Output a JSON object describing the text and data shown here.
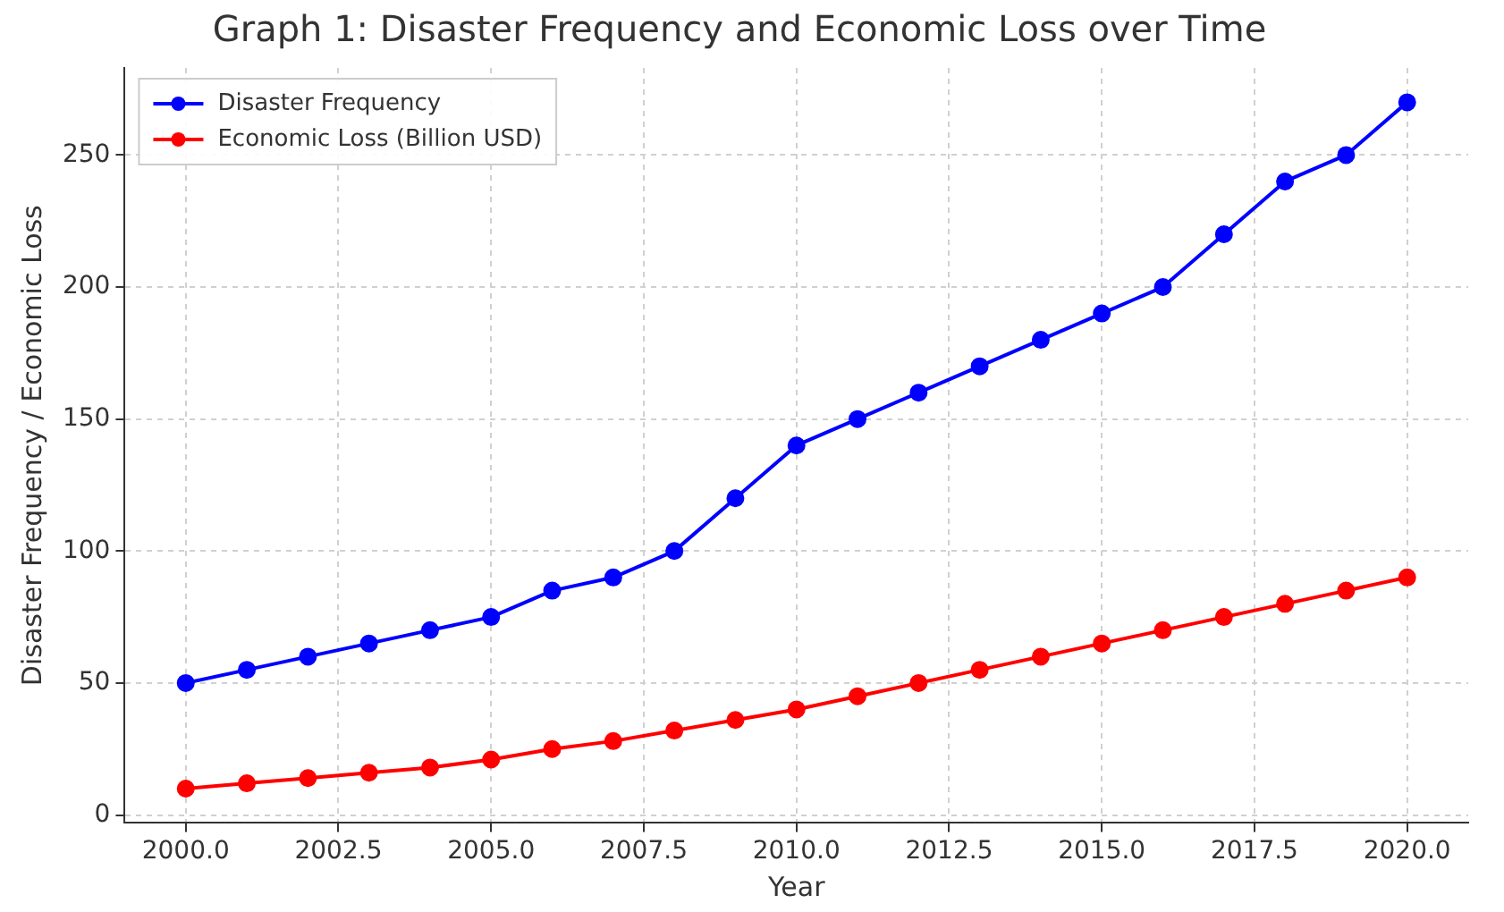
{
  "chart_data": {
    "type": "line",
    "title": "Graph 1: Disaster Frequency and Economic Loss over Time",
    "xlabel": "Year",
    "ylabel": "Disaster Frequency / Economic Loss",
    "x": [
      2000,
      2001,
      2002,
      2003,
      2004,
      2005,
      2006,
      2007,
      2008,
      2009,
      2010,
      2011,
      2012,
      2013,
      2014,
      2015,
      2016,
      2017,
      2018,
      2019,
      2020
    ],
    "series": [
      {
        "name": "Disaster Frequency",
        "color": "#0000ff",
        "values": [
          50,
          55,
          60,
          65,
          70,
          75,
          85,
          90,
          100,
          120,
          140,
          150,
          160,
          170,
          180,
          190,
          200,
          220,
          240,
          250,
          270
        ]
      },
      {
        "name": "Economic Loss (Billion USD)",
        "color": "#ff0000",
        "values": [
          10,
          12,
          14,
          16,
          18,
          21,
          25,
          28,
          32,
          36,
          40,
          45,
          50,
          55,
          60,
          65,
          70,
          75,
          80,
          85,
          90
        ]
      }
    ],
    "xlim": [
      1999,
      2021
    ],
    "xticks": [
      {
        "value": 2000,
        "label": "2000.0"
      },
      {
        "value": 2002.5,
        "label": "2002.5"
      },
      {
        "value": 2005,
        "label": "2005.0"
      },
      {
        "value": 2007.5,
        "label": "2007.5"
      },
      {
        "value": 2010,
        "label": "2010.0"
      },
      {
        "value": 2012.5,
        "label": "2012.5"
      },
      {
        "value": 2015,
        "label": "2015.0"
      },
      {
        "value": 2017.5,
        "label": "2017.5"
      },
      {
        "value": 2020,
        "label": "2020.0"
      }
    ],
    "ylim": [
      -3,
      283
    ],
    "yticks": [
      0,
      50,
      100,
      150,
      200,
      250
    ],
    "grid": true,
    "legend": "top left",
    "marker": "circle",
    "line_style": "solid"
  }
}
